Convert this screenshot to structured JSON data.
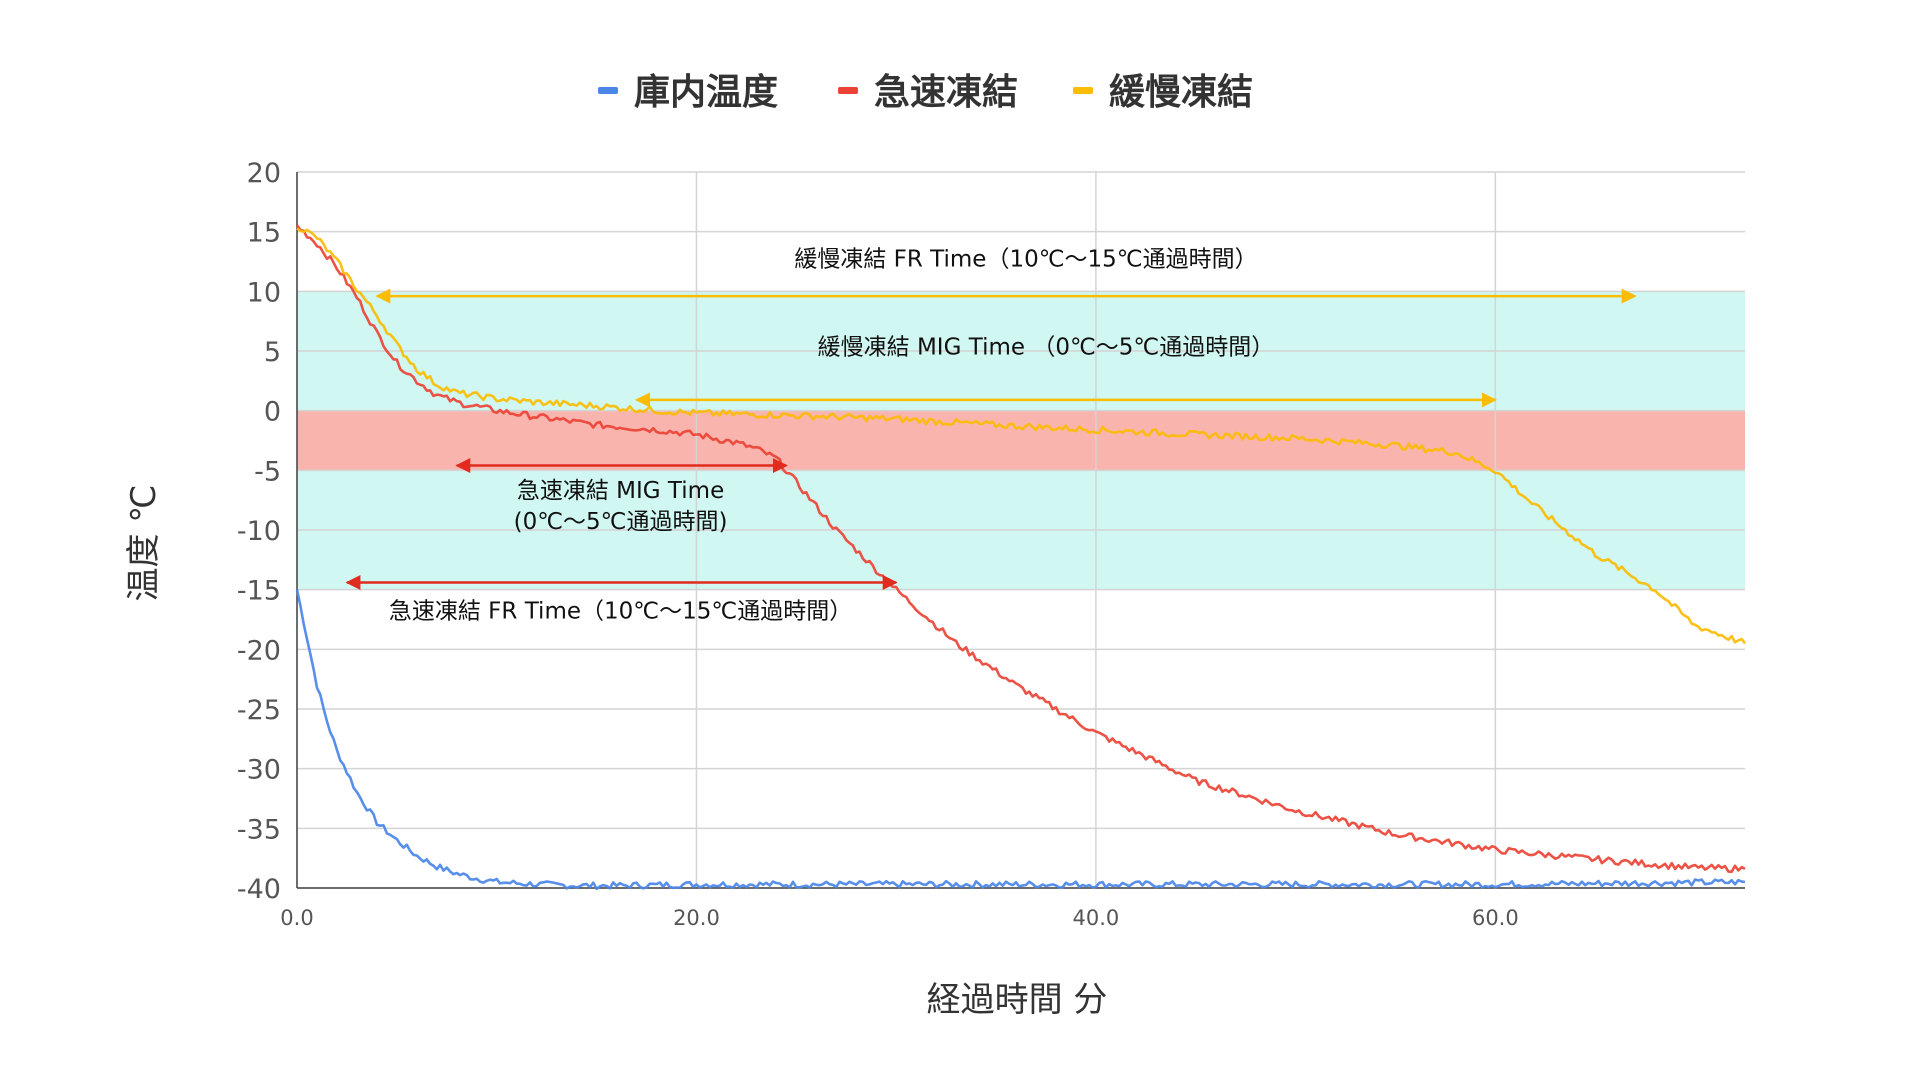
{
  "chart_data": {
    "type": "line",
    "xlabel": "経過時間 分",
    "ylabel": "温度 ℃",
    "xlim": [
      0,
      72.5
    ],
    "ylim": [
      -40,
      20
    ],
    "x_ticks": [
      0,
      20,
      40,
      60
    ],
    "x_tick_labels": [
      "0.0",
      "20.0",
      "40.0",
      "60.0"
    ],
    "y_ticks": [
      20,
      15,
      10,
      5,
      0,
      -5,
      -10,
      -15,
      -20,
      -25,
      -30,
      -35,
      -40
    ],
    "y_tick_labels": [
      "20",
      "15",
      "10",
      "5",
      "0",
      "-5",
      "-10",
      "-15",
      "-20",
      "-25",
      "-30",
      "-35",
      "-40"
    ],
    "grid": true,
    "legend_position": "top-center",
    "bands": [
      {
        "y_from": 0,
        "y_to": 10,
        "color": "#d0f7f1"
      },
      {
        "y_from": -5,
        "y_to": 0,
        "color": "#f8b4ad"
      },
      {
        "y_from": -15,
        "y_to": -5,
        "color": "#d0f7f1"
      }
    ],
    "series": [
      {
        "name": "庫内温度",
        "color": "#4a86e8",
        "x": [
          0,
          0.5,
          1,
          1.5,
          2,
          3,
          4,
          5,
          6,
          7,
          8,
          9,
          10,
          12,
          14,
          16,
          20,
          25,
          30,
          40,
          50,
          60,
          72.5
        ],
        "y": [
          -15,
          -19,
          -23,
          -26,
          -28.5,
          -32,
          -34.5,
          -36,
          -37.3,
          -38.2,
          -38.8,
          -39.2,
          -39.5,
          -39.7,
          -39.8,
          -39.8,
          -39.7,
          -39.7,
          -39.7,
          -39.7,
          -39.7,
          -39.7,
          -39.5
        ]
      },
      {
        "name": "急速凍結",
        "color": "#ea4335",
        "x": [
          0,
          1,
          2,
          3,
          4,
          5,
          6,
          7,
          8,
          10,
          12,
          15,
          18,
          20,
          22,
          23,
          24,
          25,
          27,
          30,
          33,
          36,
          40,
          45,
          50,
          55,
          60,
          65,
          70,
          72.5
        ],
        "y": [
          15.5,
          14,
          12,
          9.5,
          6.5,
          4,
          2.5,
          1.3,
          0.7,
          0,
          -0.5,
          -1.2,
          -1.6,
          -2,
          -2.7,
          -3.2,
          -4,
          -6,
          -10,
          -15,
          -19.5,
          -23,
          -27,
          -31,
          -33.5,
          -35.5,
          -36.8,
          -37.6,
          -38.3,
          -38.4
        ]
      },
      {
        "name": "緩慢凍結",
        "color": "#fbbc04",
        "x": [
          0,
          1,
          2,
          3,
          4,
          5,
          6,
          7,
          8,
          10,
          12,
          15,
          18,
          20,
          25,
          30,
          35,
          40,
          45,
          50,
          55,
          58,
          60,
          62,
          65,
          68,
          70,
          72.5
        ],
        "y": [
          15.5,
          14.5,
          12.5,
          10.2,
          8,
          5.5,
          3.5,
          2.2,
          1.5,
          1,
          0.7,
          0.4,
          0,
          -0.2,
          -0.4,
          -0.7,
          -1.2,
          -1.6,
          -2,
          -2.3,
          -2.9,
          -3.5,
          -5,
          -8,
          -12,
          -15,
          -18,
          -19.5
        ]
      }
    ],
    "annotations": [
      {
        "name": "slow-fr",
        "lines": [
          "緩慢凍結 FR Time（10℃〜15℃通過時間）"
        ],
        "color": "#fbbc04",
        "x1": 4,
        "x2": 67,
        "y": 9.6,
        "text_x": 36.5,
        "text_y": 12.1,
        "anchor": "middle"
      },
      {
        "name": "slow-mig",
        "lines": [
          "緩慢凍結 MIG Time （0℃〜5℃通過時間）"
        ],
        "color": "#fbbc04",
        "x1": 17,
        "x2": 60,
        "y": 0.9,
        "text_x": 37.5,
        "text_y": 4.7,
        "anchor": "middle"
      },
      {
        "name": "rapid-mig",
        "lines": [
          "急速凍結 MIG Time",
          "(0℃〜5℃通過時間)"
        ],
        "color": "#e02c1f",
        "x1": 8,
        "x2": 24.5,
        "y": -4.6,
        "text_x": 16.2,
        "text_y": -7.3,
        "anchor": "middle"
      },
      {
        "name": "rapid-fr",
        "lines": [
          "急速凍結 FR Time（10℃〜15℃通過時間）"
        ],
        "color": "#e02c1f",
        "x1": 2.5,
        "x2": 30,
        "y": -14.4,
        "text_x": 16.2,
        "text_y": -17.4,
        "anchor": "middle"
      }
    ]
  }
}
